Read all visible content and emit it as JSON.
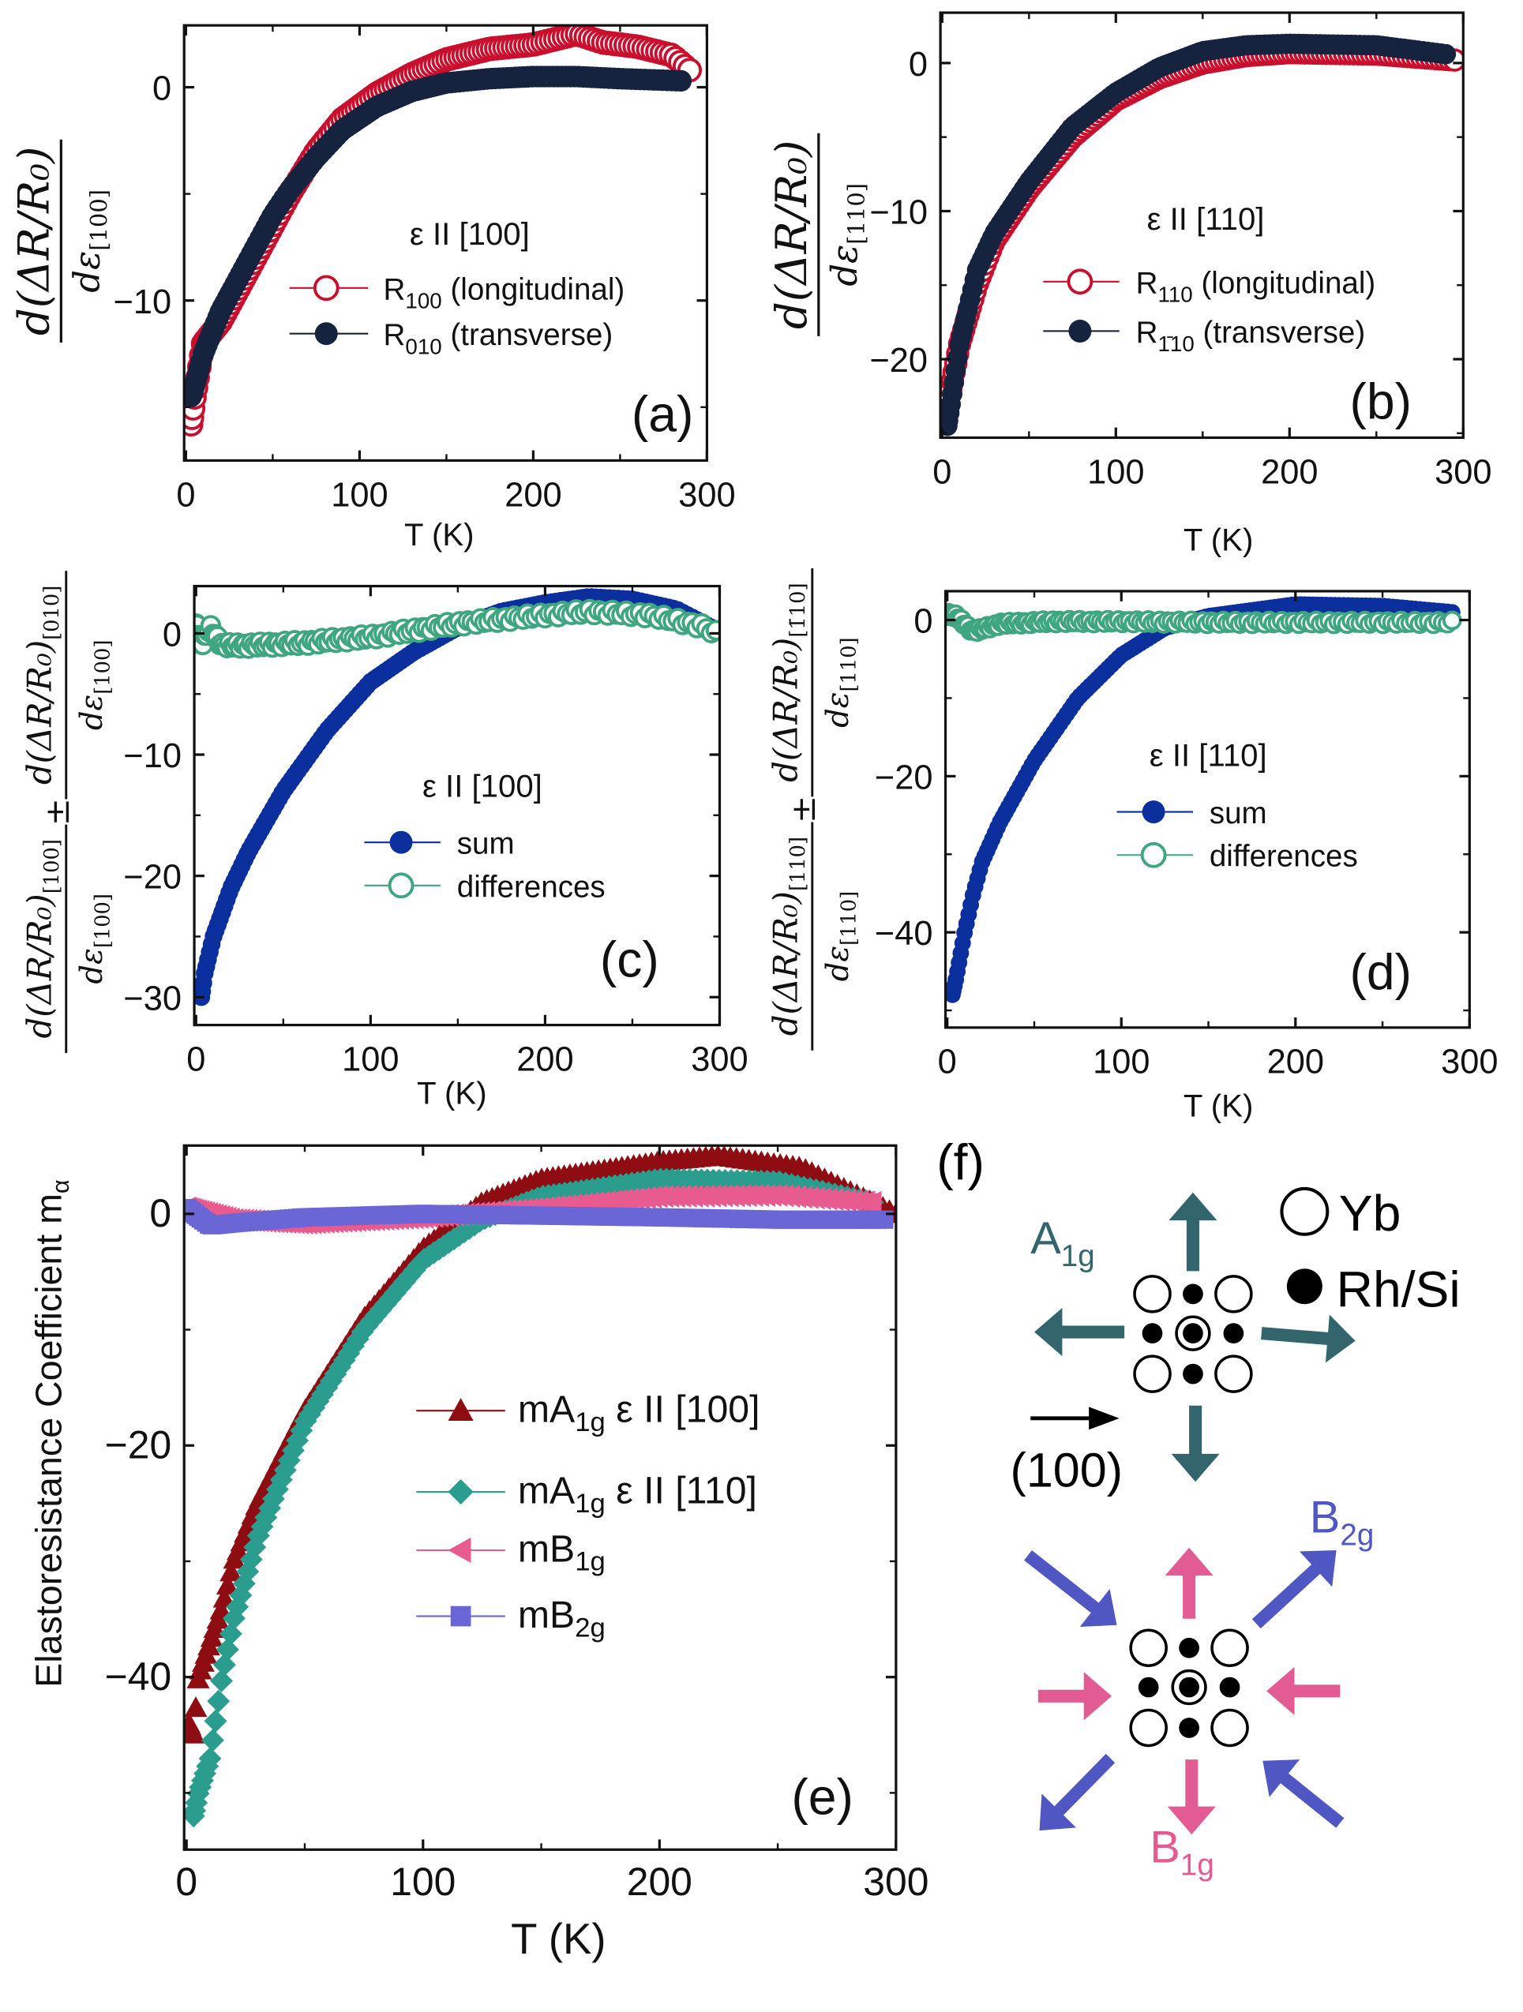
{
  "chart_data": [
    {
      "panel": "(a)",
      "type": "scatter",
      "xlabel": "T (K)",
      "ylabel": {
        "numerator": "d(ΔR/R₀)",
        "denominator": "dε",
        "denominator_sub": "[100]"
      },
      "xlim": [
        -1,
        300
      ],
      "ylim": [
        -17.5,
        2.9
      ],
      "x_ticks": [
        "0",
        "100",
        "200",
        "300"
      ],
      "y_ticks": [
        "0",
        "-10"
      ],
      "y_tick_values": [
        0,
        -10
      ],
      "x_tick_values": [
        0,
        100,
        200,
        300
      ],
      "legend": {
        "title": "ε II [100]",
        "placement": "center-right"
      },
      "series": [
        {
          "name": "R",
          "sub": "100",
          "rest": " (longitudinal)",
          "marker": "open-circle",
          "color": "#c8102e",
          "points": [
            [
              3,
              -15.8
            ],
            [
              5,
              -14.5
            ],
            [
              10,
              -12
            ],
            [
              20,
              -11
            ],
            [
              30,
              -9.5
            ],
            [
              40,
              -8
            ],
            [
              50,
              -6.5
            ],
            [
              60,
              -5
            ],
            [
              75,
              -3
            ],
            [
              90,
              -1.5
            ],
            [
              110,
              -0.3
            ],
            [
              130,
              0.6
            ],
            [
              150,
              1.3
            ],
            [
              175,
              1.8
            ],
            [
              200,
              2
            ],
            [
              225,
              2.5
            ],
            [
              240,
              2.1
            ],
            [
              260,
              1.9
            ],
            [
              280,
              1.5
            ],
            [
              290,
              0.8
            ]
          ]
        },
        {
          "name": "R",
          "sub": "010",
          "rest": " (transverse)",
          "marker": "filled-circle",
          "color": "#15233f",
          "points": [
            [
              3,
              -14.5
            ],
            [
              5,
              -14
            ],
            [
              10,
              -12.5
            ],
            [
              20,
              -10.5
            ],
            [
              30,
              -9
            ],
            [
              40,
              -7.5
            ],
            [
              50,
              -6
            ],
            [
              60,
              -4.8
            ],
            [
              75,
              -3.3
            ],
            [
              90,
              -2
            ],
            [
              110,
              -0.9
            ],
            [
              130,
              -0.2
            ],
            [
              150,
              0.2
            ],
            [
              175,
              0.4
            ],
            [
              200,
              0.5
            ],
            [
              225,
              0.5
            ],
            [
              250,
              0.4
            ],
            [
              285,
              0.3
            ]
          ]
        }
      ]
    },
    {
      "panel": "(b)",
      "type": "scatter",
      "xlabel": "T (K)",
      "ylabel": {
        "numerator": "d(ΔR/R₀)",
        "denominator": "dε",
        "denominator_sub": "[110]"
      },
      "xlim": [
        -1,
        300
      ],
      "ylim": [
        -25.3,
        3.4
      ],
      "x_ticks": [
        "0",
        "100",
        "200",
        "300"
      ],
      "y_ticks": [
        "0",
        "-10",
        "-20"
      ],
      "y_tick_values": [
        0,
        -10,
        -20
      ],
      "x_tick_values": [
        0,
        100,
        200,
        300
      ],
      "legend": {
        "title": "ε II [110]",
        "placement": "center-right"
      },
      "series": [
        {
          "name": "R",
          "sub": "110",
          "rest": " (longitudinal)",
          "marker": "open-circle",
          "color": "#c8102e",
          "points": [
            [
              3,
              -23
            ],
            [
              5,
              -22
            ],
            [
              10,
              -19
            ],
            [
              20,
              -15
            ],
            [
              30,
              -12
            ],
            [
              50,
              -8.5
            ],
            [
              75,
              -5
            ],
            [
              100,
              -2.5
            ],
            [
              125,
              -1
            ],
            [
              150,
              0
            ],
            [
              175,
              0.5
            ],
            [
              200,
              0.7
            ],
            [
              250,
              0.6
            ],
            [
              295,
              0.2
            ]
          ]
        },
        {
          "name": "R",
          "sub": "1̄10",
          "rest": " (transverse)",
          "marker": "filled-circle",
          "color": "#15233f",
          "points": [
            [
              3,
              -24.5
            ],
            [
              5,
              -23
            ],
            [
              10,
              -19
            ],
            [
              15,
              -16.5
            ],
            [
              20,
              -14
            ],
            [
              30,
              -11.5
            ],
            [
              50,
              -8
            ],
            [
              75,
              -4.3
            ],
            [
              100,
              -2
            ],
            [
              125,
              -0.3
            ],
            [
              150,
              0.8
            ],
            [
              175,
              1.2
            ],
            [
              200,
              1.3
            ],
            [
              250,
              1.2
            ],
            [
              290,
              0.6
            ]
          ]
        }
      ]
    },
    {
      "panel": "(c)",
      "type": "scatter",
      "xlabel": "T (K)",
      "ylabel": {
        "f1_num": "d(ΔR/R₀)",
        "f1_num_sub": "[100]",
        "f1_den": "dε",
        "f1_den_sub": "[100]",
        "op": "±",
        "f2_num": "d(ΔR/R₀)",
        "f2_num_sub": "[010]",
        "f2_den": "dε",
        "f2_den_sub": "[100]"
      },
      "xlim": [
        -1,
        300
      ],
      "ylim": [
        -32.3,
        3.9
      ],
      "x_ticks": [
        "0",
        "100",
        "200",
        "300"
      ],
      "y_ticks": [
        "0",
        "-10",
        "-20",
        "-30"
      ],
      "y_tick_values": [
        0,
        -10,
        -20,
        -30
      ],
      "x_tick_values": [
        0,
        100,
        200,
        300
      ],
      "legend": {
        "title": "ε II [100]",
        "placement": "center-right"
      },
      "series": [
        {
          "name": "sum",
          "marker": "filled-circle",
          "color": "#0c2f9e",
          "points": [
            [
              3,
              -30
            ],
            [
              5,
              -28
            ],
            [
              10,
              -25
            ],
            [
              20,
              -21
            ],
            [
              30,
              -18
            ],
            [
              50,
              -13
            ],
            [
              75,
              -8
            ],
            [
              100,
              -4
            ],
            [
              125,
              -1.5
            ],
            [
              150,
              0.5
            ],
            [
              175,
              1.8
            ],
            [
              200,
              2.5
            ],
            [
              225,
              3
            ],
            [
              250,
              2.8
            ],
            [
              275,
              2
            ],
            [
              295,
              0.5
            ]
          ]
        },
        {
          "name": "differences",
          "marker": "open-circle",
          "color": "#3fa67f",
          "points": [
            [
              0,
              0.8
            ],
            [
              3,
              -1
            ],
            [
              8,
              0.5
            ],
            [
              15,
              -1
            ],
            [
              30,
              -1
            ],
            [
              60,
              -0.8
            ],
            [
              100,
              -0.3
            ],
            [
              150,
              0.8
            ],
            [
              200,
              1.5
            ],
            [
              225,
              1.8
            ],
            [
              260,
              1.5
            ],
            [
              290,
              0.6
            ],
            [
              298,
              0
            ]
          ]
        }
      ]
    },
    {
      "panel": "(d)",
      "type": "scatter",
      "xlabel": "T (K)",
      "ylabel": {
        "f1_num": "d(ΔR/R₀)",
        "f1_num_sub": "[110]",
        "f1_den": "dε",
        "f1_den_sub": "[110]",
        "op": "±",
        "f2_num": "d(ΔR/R₀)",
        "f2_num_sub": "[1̄10]",
        "f2_den": "dε",
        "f2_den_sub": "[110]"
      },
      "xlim": [
        -1,
        300
      ],
      "ylim": [
        -52.2,
        3.7
      ],
      "x_ticks": [
        "0",
        "100",
        "200",
        "300"
      ],
      "y_ticks": [
        "0",
        "-20",
        "-40"
      ],
      "y_tick_values": [
        0,
        -20,
        -40
      ],
      "x_tick_values": [
        0,
        100,
        200,
        300
      ],
      "legend": {
        "title": "ε II [110]",
        "placement": "center-right"
      },
      "series": [
        {
          "name": "sum",
          "marker": "filled-circle",
          "color": "#0c2f9e",
          "points": [
            [
              3,
              -48
            ],
            [
              5,
              -46
            ],
            [
              10,
              -40
            ],
            [
              15,
              -35
            ],
            [
              20,
              -31
            ],
            [
              30,
              -26
            ],
            [
              50,
              -18
            ],
            [
              75,
              -10
            ],
            [
              100,
              -4.5
            ],
            [
              125,
              -1
            ],
            [
              150,
              0.5
            ],
            [
              200,
              2
            ],
            [
              250,
              1.8
            ],
            [
              290,
              1
            ]
          ]
        },
        {
          "name": "differences",
          "marker": "open-circle",
          "color": "#3fa67f",
          "points": [
            [
              0,
              0.8
            ],
            [
              5,
              0.5
            ],
            [
              15,
              -1.5
            ],
            [
              30,
              -0.5
            ],
            [
              60,
              -0.2
            ],
            [
              100,
              -0.2
            ],
            [
              150,
              -0.3
            ],
            [
              200,
              -0.3
            ],
            [
              250,
              -0.3
            ],
            [
              290,
              -0.3
            ]
          ]
        }
      ]
    },
    {
      "panel": "(e)",
      "type": "scatter",
      "xlabel": "T (K)",
      "ylabel": {
        "text": "Elastoresistance Coefficient m",
        "sub": "α"
      },
      "xlim": [
        -1,
        300
      ],
      "ylim": [
        -54.9,
        5.9
      ],
      "x_ticks": [
        "0",
        "100",
        "200",
        "300"
      ],
      "y_ticks": [
        "0",
        "-20",
        "-40"
      ],
      "y_tick_values": [
        0,
        -20,
        -40
      ],
      "x_tick_values": [
        0,
        100,
        200,
        300
      ],
      "legend": {
        "placement": "center-right"
      },
      "series": [
        {
          "name": "mA",
          "sub": "1g",
          "rest": " ε II [100]",
          "marker": "triangle-up",
          "color": "#8e0d12",
          "points": [
            [
              1,
              -44
            ],
            [
              3,
              -45
            ],
            [
              5,
              -40
            ],
            [
              10,
              -37
            ],
            [
              15,
              -34
            ],
            [
              20,
              -30
            ],
            [
              30,
              -25
            ],
            [
              50,
              -17
            ],
            [
              75,
              -9
            ],
            [
              100,
              -3
            ],
            [
              125,
              1
            ],
            [
              150,
              3
            ],
            [
              200,
              4.5
            ],
            [
              225,
              5
            ],
            [
              260,
              4
            ],
            [
              290,
              1
            ],
            [
              300,
              0
            ]
          ]
        },
        {
          "name": "mA",
          "sub": "1g",
          "rest": " ε II [110]",
          "marker": "diamond",
          "color": "#2a9d8f",
          "points": [
            [
              3,
              -52
            ],
            [
              5,
              -50
            ],
            [
              10,
              -47
            ],
            [
              15,
              -40
            ],
            [
              20,
              -35
            ],
            [
              30,
              -28
            ],
            [
              50,
              -18
            ],
            [
              75,
              -10
            ],
            [
              100,
              -4
            ],
            [
              125,
              -0.5
            ],
            [
              150,
              1.5
            ],
            [
              200,
              3
            ],
            [
              250,
              2.8
            ],
            [
              290,
              1
            ]
          ]
        },
        {
          "name": "mB",
          "sub": "1g",
          "rest": "",
          "marker": "triangle-left",
          "color": "#e85b8f",
          "points": [
            [
              0,
              0.5
            ],
            [
              20,
              -0.5
            ],
            [
              50,
              -0.8
            ],
            [
              100,
              -0.3
            ],
            [
              150,
              0.5
            ],
            [
              200,
              1.5
            ],
            [
              250,
              1.6
            ],
            [
              290,
              1
            ]
          ]
        },
        {
          "name": "mB",
          "sub": "2g",
          "rest": "",
          "marker": "square",
          "color": "#6a66d6",
          "points": [
            [
              0,
              0.5
            ],
            [
              10,
              -1
            ],
            [
              20,
              -0.8
            ],
            [
              50,
              -0.3
            ],
            [
              100,
              0
            ],
            [
              200,
              -0.3
            ],
            [
              250,
              -0.5
            ],
            [
              295,
              -0.5
            ]
          ]
        }
      ]
    }
  ],
  "diagram_f": {
    "panel": "(f)",
    "legend_yb": "Yb",
    "legend_rhsi": "Rh/Si",
    "a1g": {
      "main": "A",
      "sub": "1g",
      "color": "#33666c"
    },
    "b1g": {
      "main": "B",
      "sub": "1g",
      "color": "#e25b92"
    },
    "b2g": {
      "main": "B",
      "sub": "2g",
      "color": "#5057c2"
    },
    "direction_label": "(100)"
  }
}
